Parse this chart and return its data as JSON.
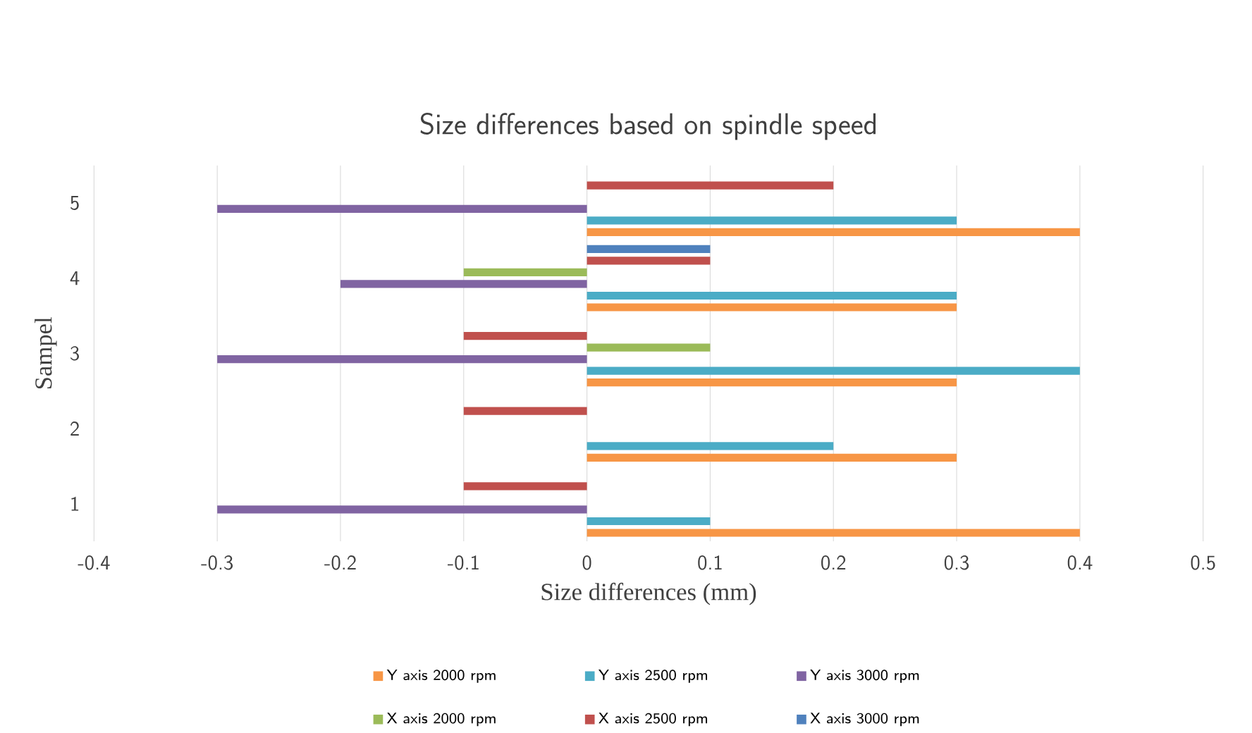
{
  "chart_data": {
    "type": "bar",
    "orientation": "horizontal",
    "title": "Size differences based on spindle speed",
    "xlabel": "Size differences (mm)",
    "ylabel": "Sampel",
    "categories": [
      "5",
      "4",
      "3",
      "2",
      "1"
    ],
    "series": [
      {
        "name": "Y axis 2000 rpm",
        "color": "#f79646",
        "values": [
          0.4,
          0.3,
          0.3,
          0.3,
          0.4
        ]
      },
      {
        "name": "Y axis 2500 rpm",
        "color": "#4bacc6",
        "values": [
          0.3,
          0.3,
          0.4,
          0.2,
          0.1
        ]
      },
      {
        "name": "Y axis 3000 rpm",
        "color": "#8064a2",
        "values": [
          -0.3,
          -0.2,
          -0.3,
          0,
          -0.3
        ]
      },
      {
        "name": "X axis 2000 rpm",
        "color": "#9bbb59",
        "values": [
          0,
          -0.1,
          0.1,
          0,
          0
        ]
      },
      {
        "name": "X axis 2500 rpm",
        "color": "#c0504d",
        "values": [
          0.2,
          0.1,
          -0.1,
          -0.1,
          -0.1
        ]
      },
      {
        "name": "X axis 3000 rpm",
        "color": "#4f81bd",
        "values": [
          0,
          0.1,
          0,
          0,
          0
        ]
      }
    ],
    "xlim": [
      -0.4,
      0.5
    ],
    "xticks": [
      -0.4,
      -0.3,
      -0.2,
      -0.1,
      0,
      0.1,
      0.2,
      0.3,
      0.4,
      0.5
    ],
    "grid": "x",
    "legend": "bottom"
  }
}
